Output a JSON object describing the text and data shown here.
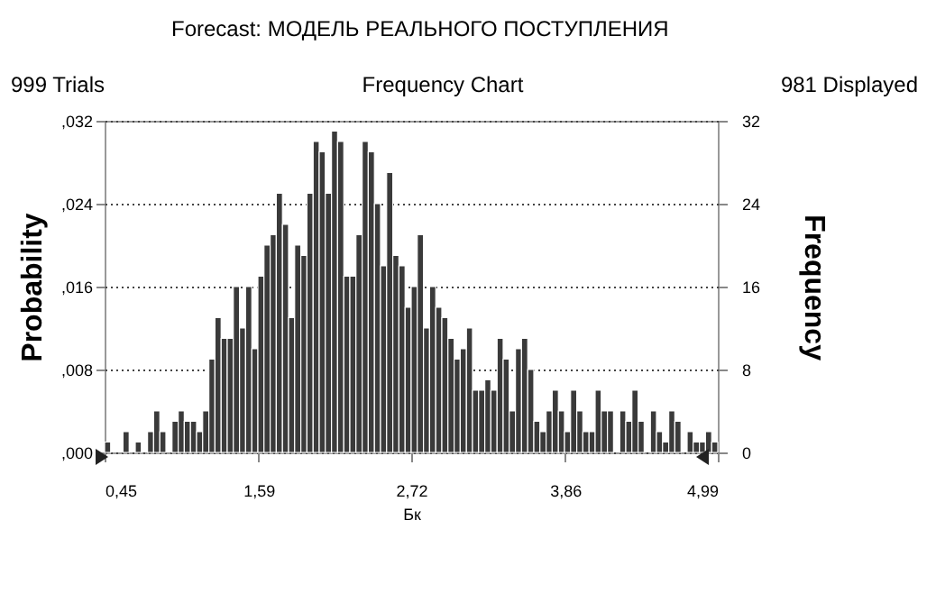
{
  "chart_data": {
    "type": "histogram",
    "title": "Forecast: МОДЕЛЬ РЕАЛЬНОГО ПОСТУПЛЕНИЯ",
    "subtitle": "Frequency Chart",
    "annotations": [
      "999 Trials",
      "981 Displayed"
    ],
    "xlabel": "Бк",
    "ylabel": "Frequency",
    "y2label": "Probability",
    "color": "#3a3a3a",
    "bins": [
      0.45,
      0.495,
      0.541,
      0.586,
      0.632,
      0.677,
      0.722,
      0.768,
      0.813,
      0.859,
      0.904,
      0.949,
      0.995,
      1.04,
      1.086,
      1.131,
      1.176,
      1.222,
      1.267,
      1.313,
      1.358,
      1.403,
      1.449,
      1.494,
      1.54,
      1.585,
      1.63,
      1.676,
      1.721,
      1.767,
      1.812,
      1.857,
      1.903,
      1.948,
      1.994,
      2.039,
      2.084,
      2.13,
      2.175,
      2.221,
      2.266,
      2.311,
      2.357,
      2.402,
      2.448,
      2.493,
      2.538,
      2.584,
      2.629,
      2.675,
      2.72,
      2.765,
      2.811,
      2.856,
      2.902,
      2.947,
      2.992,
      3.038,
      3.083,
      3.129,
      3.174,
      3.219,
      3.265,
      3.31,
      3.356,
      3.401,
      3.446,
      3.492,
      3.537,
      3.583,
      3.628,
      3.673,
      3.719,
      3.764,
      3.81,
      3.855,
      3.9,
      3.946,
      3.991,
      4.037,
      4.082,
      4.127,
      4.173,
      4.218,
      4.264,
      4.309,
      4.354,
      4.4,
      4.445,
      4.491,
      4.536,
      4.581,
      4.627,
      4.672,
      4.718,
      4.763,
      4.808,
      4.854,
      4.899,
      4.945,
      4.99
    ],
    "values": [
      1,
      0,
      0,
      2,
      0,
      1,
      0,
      2,
      4,
      2,
      0,
      3,
      4,
      3,
      3,
      2,
      4,
      9,
      13,
      11,
      11,
      16,
      12,
      16,
      10,
      17,
      20,
      21,
      25,
      22,
      13,
      20,
      19,
      25,
      30,
      29,
      25,
      31,
      30,
      17,
      17,
      21,
      30,
      29,
      24,
      18,
      27,
      19,
      18,
      14,
      16,
      21,
      12,
      16,
      14,
      13,
      11,
      9,
      10,
      12,
      6,
      6,
      7,
      6,
      11,
      9,
      4,
      10,
      11,
      8,
      3,
      2,
      4,
      6,
      4,
      2,
      6,
      4,
      2,
      2,
      6,
      4,
      4,
      0,
      4,
      3,
      6,
      3,
      0,
      4,
      2,
      1,
      4,
      3,
      0,
      2,
      1,
      1,
      2,
      1
    ],
    "xlim": [
      0.45,
      4.99
    ],
    "xticks": [
      {
        "value": 0.45,
        "label": "0,45"
      },
      {
        "value": 1.59,
        "label": "1,59"
      },
      {
        "value": 2.72,
        "label": "2,72"
      },
      {
        "value": 3.86,
        "label": "3,86"
      },
      {
        "value": 4.99,
        "label": "4,99"
      }
    ],
    "ylim": [
      0,
      32
    ],
    "yticks": [
      0,
      8,
      16,
      24,
      32
    ],
    "y2_categories": [
      ",032",
      ",024",
      ",016",
      ",008",
      ",000"
    ],
    "grid": "y"
  }
}
